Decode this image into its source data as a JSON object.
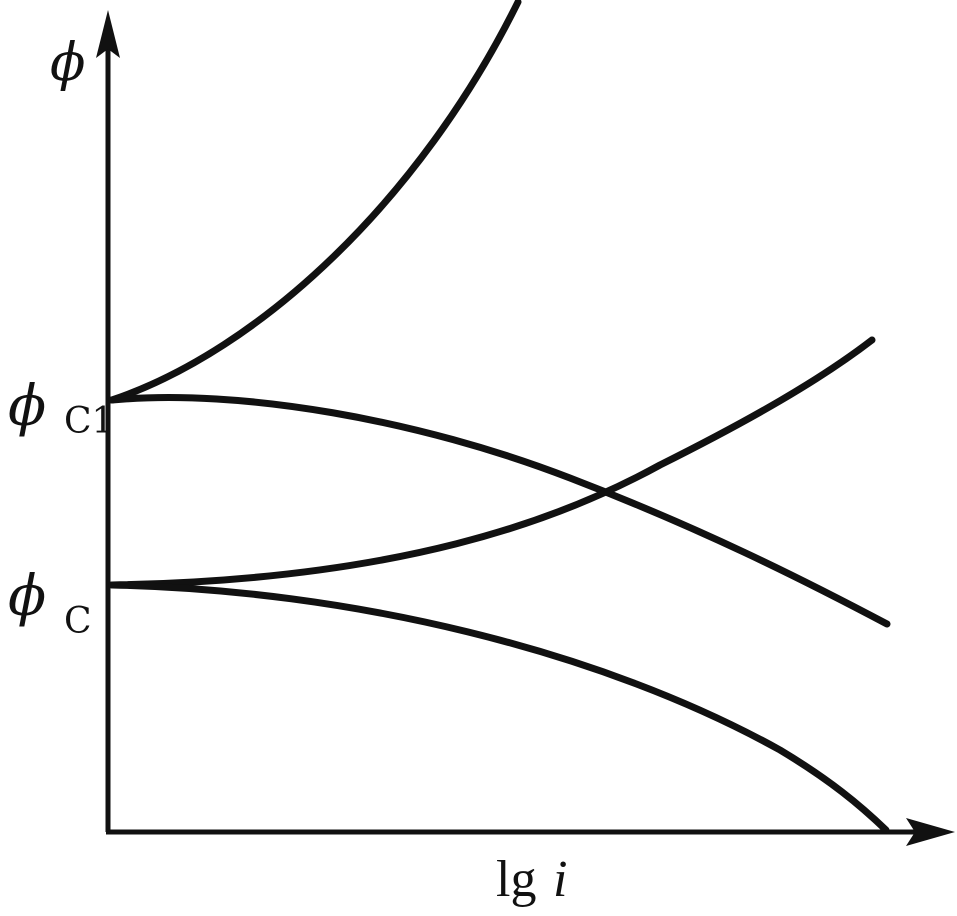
{
  "diagram": {
    "y_axis_label": "ϕ",
    "x_axis_label": {
      "main": "lg",
      "italic": "i"
    },
    "levels": [
      {
        "base": "ϕ",
        "subscript": "C1"
      },
      {
        "base": "ϕ",
        "subscript": "C"
      }
    ],
    "stroke_color": "#111111",
    "background_color": "#ffffff"
  }
}
